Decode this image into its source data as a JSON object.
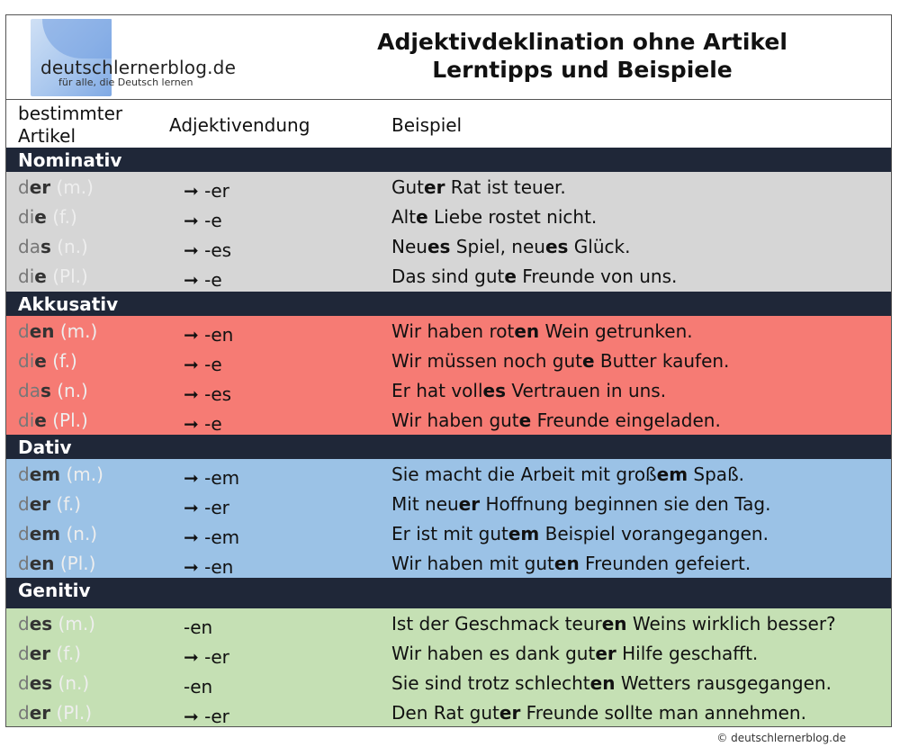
{
  "header": {
    "logo_name": "deutschlernerblog.de",
    "logo_tagline": "für alle, die Deutsch lernen",
    "title_line1": "Adjektivdeklination ohne Artikel",
    "title_line2": "Lerntipps und Beispiele"
  },
  "columns": {
    "article_line1": "bestimmter",
    "article_line2": "Artikel",
    "ending": "Adjektivendung",
    "example": "Beispiel"
  },
  "sections": [
    {
      "name": "Nominativ",
      "bg": "#d6d6d6",
      "rows": [
        {
          "art_pre": "d",
          "art_bold": "er",
          "gender": "(m.)",
          "arrow": "➞",
          "ending": "-er",
          "ex_pre": "Gut",
          "ex_bold": "er",
          "ex_post": " Rat ist teuer."
        },
        {
          "art_pre": "di",
          "art_bold": "e",
          "gender": "(f.)",
          "arrow": "➞",
          "ending": "-e",
          "ex_pre": "Alt",
          "ex_bold": "e",
          "ex_post": " Liebe rostet nicht."
        },
        {
          "art_pre": "da",
          "art_bold": "s",
          "gender": "(n.)",
          "arrow": "➞",
          "ending": "-es",
          "ex_pre": "Neu",
          "ex_bold": "es",
          "ex_mid": " Spiel, neu",
          "ex_bold2": "es",
          "ex_post": " Glück."
        },
        {
          "art_pre": "di",
          "art_bold": "e",
          "gender": "(Pl.)",
          "arrow": "➞",
          "ending": "-e",
          "ex_pre": "Das sind gut",
          "ex_bold": "e",
          "ex_post": " Freunde von uns."
        }
      ]
    },
    {
      "name": "Akkusativ",
      "bg": "#f67b74",
      "rows": [
        {
          "art_pre": "d",
          "art_bold": "en",
          "gender": "(m.)",
          "arrow": "➞",
          "ending": "-en",
          "ex_pre": "Wir haben rot",
          "ex_bold": "en",
          "ex_post": " Wein getrunken."
        },
        {
          "art_pre": "di",
          "art_bold": "e",
          "gender": "(f.)",
          "arrow": "➞",
          "ending": "-e",
          "ex_pre": "Wir müssen noch gut",
          "ex_bold": "e",
          "ex_post": " Butter kaufen."
        },
        {
          "art_pre": "da",
          "art_bold": "s",
          "gender": "(n.)",
          "arrow": "➞",
          "ending": "-es",
          "ex_pre": "Er hat voll",
          "ex_bold": "es",
          "ex_post": " Vertrauen in uns."
        },
        {
          "art_pre": "di",
          "art_bold": "e",
          "gender": "(Pl.)",
          "arrow": "➞",
          "ending": "-e",
          "ex_pre": "Wir haben gut",
          "ex_bold": "e",
          "ex_post": " Freunde eingeladen."
        }
      ]
    },
    {
      "name": "Dativ",
      "bg": "#9bc2e6",
      "rows": [
        {
          "art_pre": "d",
          "art_bold": "em",
          "gender": "(m.)",
          "arrow": "➞",
          "ending": "-em",
          "ex_pre": "Sie macht die Arbeit mit groß",
          "ex_bold": "em",
          "ex_post": " Spaß."
        },
        {
          "art_pre": "d",
          "art_bold": "er",
          "gender": "(f.)",
          "arrow": "➞",
          "ending": "-er",
          "ex_pre": "Mit neu",
          "ex_bold": "er",
          "ex_post": " Hoffnung beginnen sie den Tag."
        },
        {
          "art_pre": "d",
          "art_bold": "em",
          "gender": "(n.)",
          "arrow": "➞",
          "ending": "-em",
          "ex_pre": "Er ist mit gut",
          "ex_bold": "em",
          "ex_post": " Beispiel vorangegangen."
        },
        {
          "art_pre": "d",
          "art_bold": "en",
          "gender": "(Pl.)",
          "arrow": "➞",
          "ending": "-en",
          "ex_pre": "Wir haben mit gut",
          "ex_bold": "en",
          "ex_post": " Freunden gefeiert."
        }
      ]
    },
    {
      "name": "Genitiv",
      "bg": "#c5e0b4",
      "rows": [
        {
          "art_pre": "d",
          "art_bold": "es",
          "gender": "(m.)",
          "arrow": "",
          "ending": "-en",
          "ex_pre": "Ist der Geschmack teur",
          "ex_bold": "en",
          "ex_post": " Weins wirklich besser?"
        },
        {
          "art_pre": "d",
          "art_bold": "er",
          "gender": "(f.)",
          "arrow": "➞",
          "ending": "-er",
          "ex_pre": "Wir haben es dank gut",
          "ex_bold": "er",
          "ex_post": " Hilfe geschafft."
        },
        {
          "art_pre": "d",
          "art_bold": "es",
          "gender": "(n.)",
          "arrow": "",
          "ending": "-en",
          "ex_pre": "Sie sind trotz schlecht",
          "ex_bold": "en",
          "ex_post": " Wetters rausgegangen."
        },
        {
          "art_pre": "d",
          "art_bold": "er",
          "gender": "(Pl.)",
          "arrow": "➞",
          "ending": "-er",
          "ex_pre": "Den Rat gut",
          "ex_bold": "er",
          "ex_post": " Freunde sollte man annehmen."
        }
      ]
    }
  ],
  "footer": {
    "copyright": "© deutschlernerblog.de"
  }
}
